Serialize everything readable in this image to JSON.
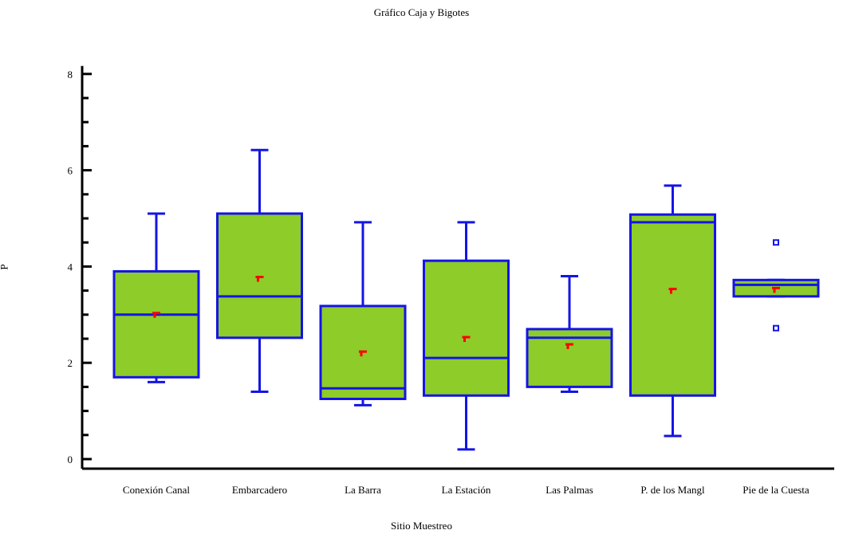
{
  "chart_data": {
    "type": "boxplot",
    "title": "Gráfico Caja y Bigotes",
    "xlabel": "Sitio Muestreo",
    "ylabel": "P",
    "ylim": [
      -0.2,
      8.2
    ],
    "yticks": [
      0,
      2,
      4,
      6,
      8
    ],
    "colors": {
      "box_fill": "#8dcc29",
      "box_stroke": "#1414e6",
      "mean_marker": "#ff0000",
      "axis": "#000000"
    },
    "categories": [
      "Conexión Canal",
      "Embarcadero",
      "La Barra",
      "La Estación",
      "Las Palmas",
      "P. de los Mangl",
      "Pie de la Cuesta"
    ],
    "boxes": [
      {
        "category": "Conexión Canal",
        "whisker_low": 1.6,
        "q1": 1.7,
        "median": 3.0,
        "q3": 3.9,
        "whisker_high": 5.1,
        "mean": 3.0,
        "outliers": []
      },
      {
        "category": "Embarcadero",
        "whisker_low": 1.4,
        "q1": 2.52,
        "median": 3.38,
        "q3": 5.1,
        "whisker_high": 6.42,
        "mean": 3.75,
        "outliers": []
      },
      {
        "category": "La Barra",
        "whisker_low": 1.12,
        "q1": 1.25,
        "median": 1.47,
        "q3": 3.18,
        "whisker_high": 4.92,
        "mean": 2.2,
        "outliers": []
      },
      {
        "category": "La Estación",
        "whisker_low": 0.2,
        "q1": 1.32,
        "median": 2.1,
        "q3": 4.12,
        "whisker_high": 4.92,
        "mean": 2.5,
        "outliers": []
      },
      {
        "category": "Las Palmas",
        "whisker_low": 1.4,
        "q1": 1.5,
        "median": 2.52,
        "q3": 2.7,
        "whisker_high": 3.8,
        "mean": 2.35,
        "outliers": []
      },
      {
        "category": "P. de los Mangl",
        "whisker_low": 0.48,
        "q1": 1.32,
        "median": 4.92,
        "q3": 5.08,
        "whisker_high": 5.68,
        "mean": 3.5,
        "outliers": []
      },
      {
        "category": "Pie de la Cuesta",
        "whisker_low": 3.38,
        "q1": 3.38,
        "median": 3.62,
        "q3": 3.72,
        "whisker_high": 3.72,
        "mean": 3.52,
        "outliers": [
          2.72,
          4.5
        ]
      }
    ]
  }
}
